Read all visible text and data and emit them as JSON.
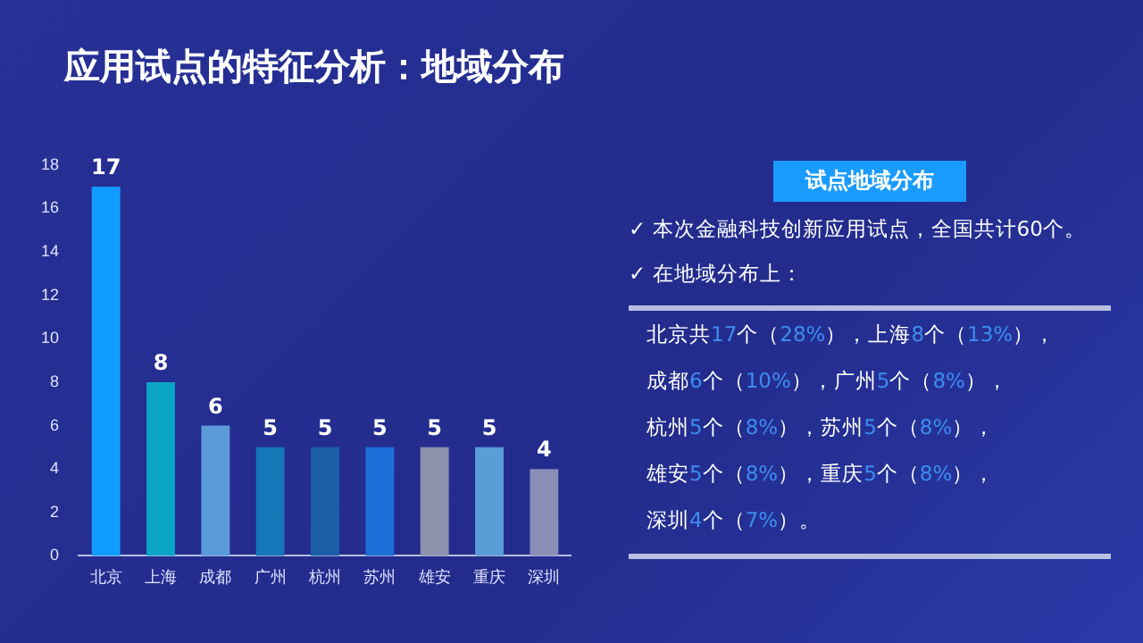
{
  "chart_data": {
    "type": "bar",
    "title": "应用试点的特征分析：地域分布",
    "categories": [
      "北京",
      "上海",
      "成都",
      "广州",
      "杭州",
      "苏州",
      "雄安",
      "重庆",
      "深圳"
    ],
    "values": [
      17,
      8,
      6,
      5,
      5,
      5,
      5,
      5,
      4
    ],
    "colors": [
      "#0f9bff",
      "#0aa6c4",
      "#5b9ad8",
      "#1577b8",
      "#1a5fa8",
      "#1c6fd8",
      "#8e93ad",
      "#5a9ed8",
      "#8a8fb8"
    ],
    "ylim": [
      0,
      18
    ],
    "yticks": [
      0,
      2,
      4,
      6,
      8,
      10,
      12,
      14,
      16,
      18
    ],
    "grid": false,
    "data_labels": true,
    "annotations": [
      "试点地域分布",
      "✓ 本次金融科技创新应用试点，全国共计60个。",
      "✓ 在地域分布上：",
      "北京共17个（28%），上海8个（13%），",
      "成都6个（10%），广州5个（8%），",
      "杭州5个（8%），苏州5个（8%），",
      "雄安5个（8%），重庆5个（8%），",
      "深圳4个（7%）。"
    ]
  }
}
